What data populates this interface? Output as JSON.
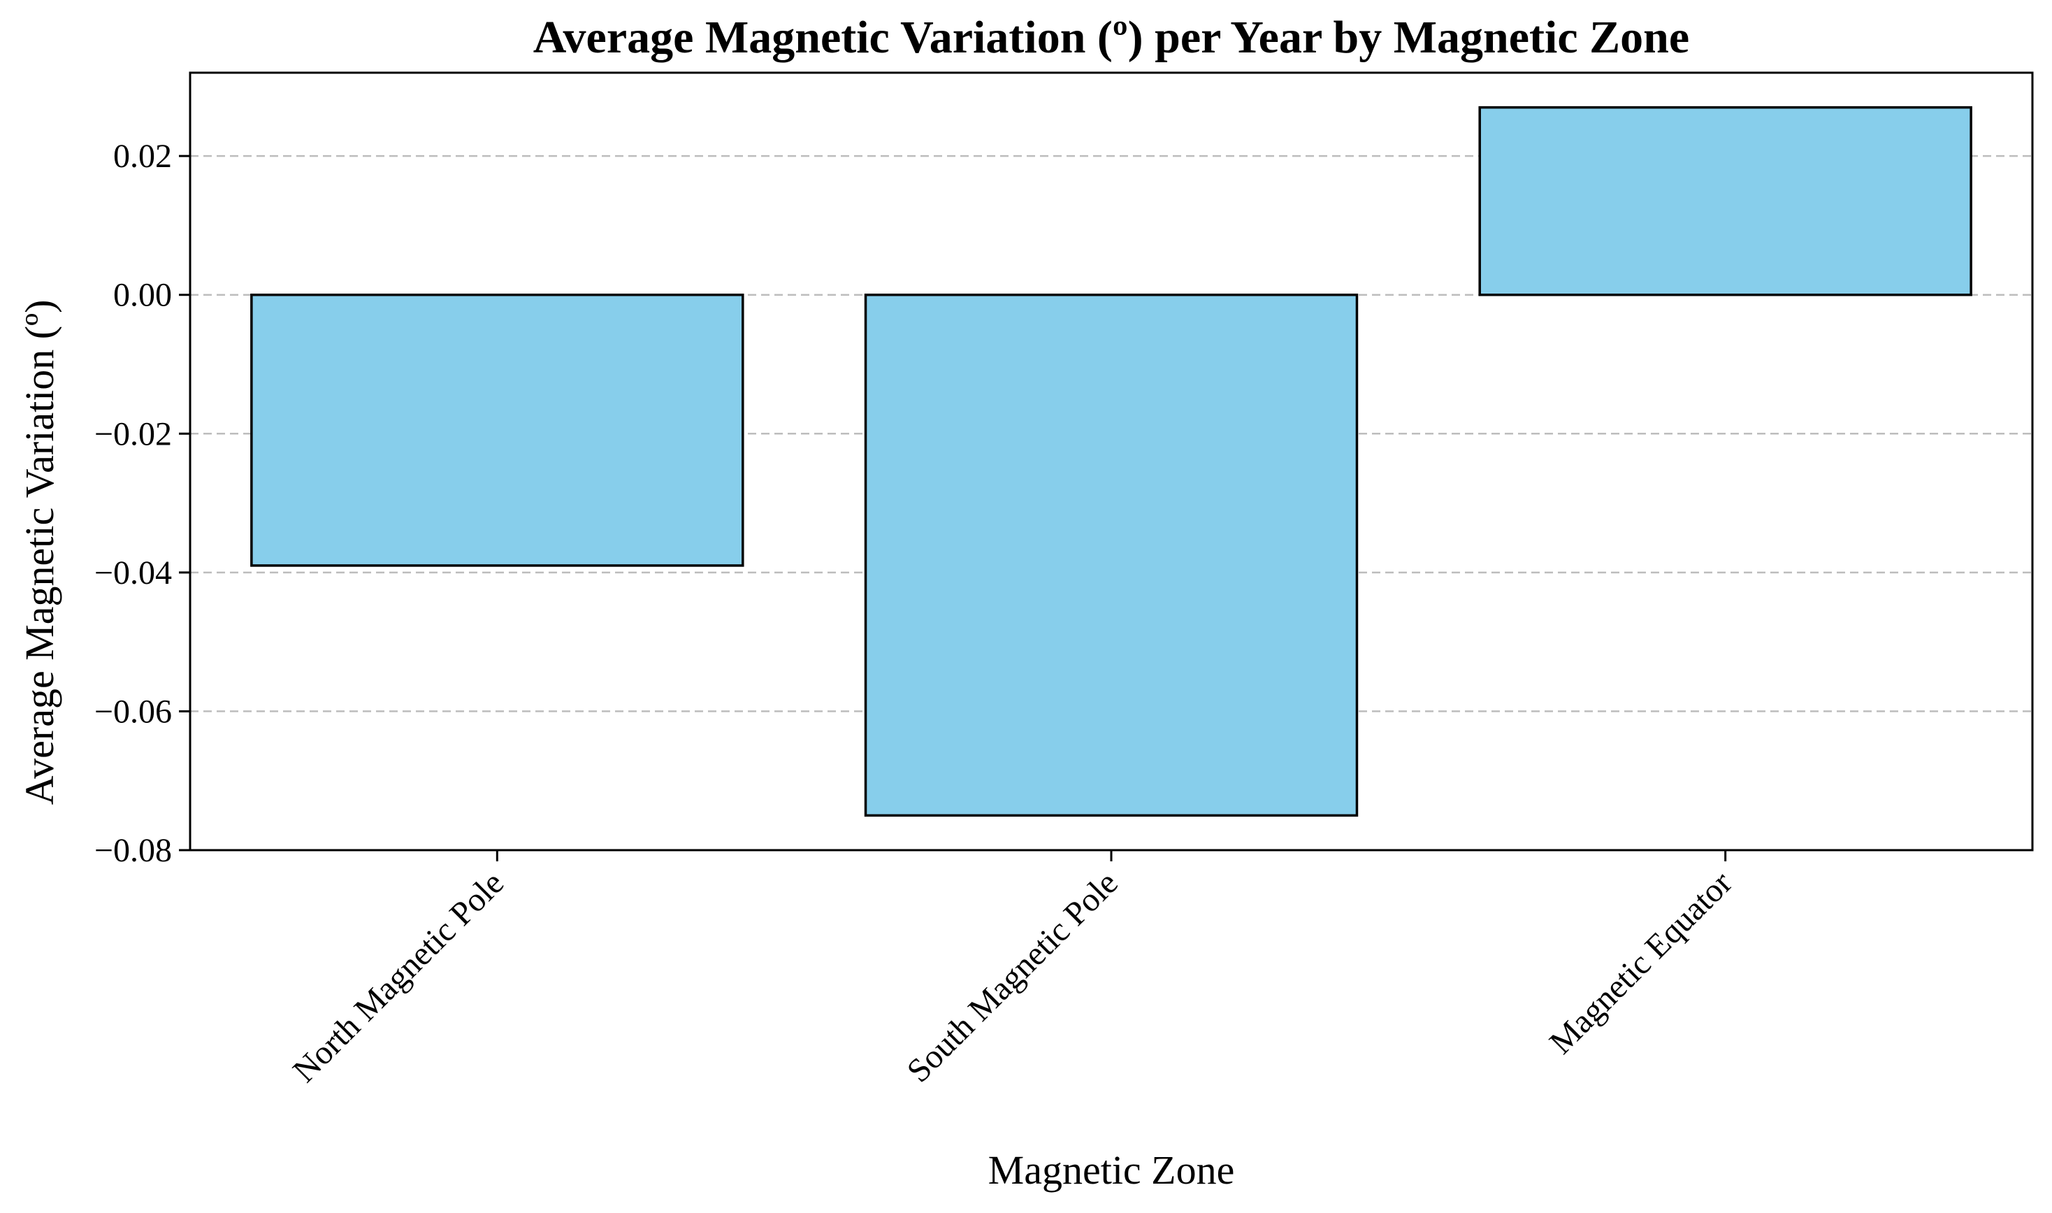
{
  "chart_data": {
    "type": "bar",
    "title": "Average Magnetic Variation (º) per Year by Magnetic Zone",
    "xlabel": "Magnetic Zone",
    "ylabel": "Average Magnetic Variation (º)",
    "categories": [
      "North Magnetic Pole",
      "South Magnetic Pole",
      "Magnetic Equator"
    ],
    "values": [
      -0.039,
      -0.075,
      0.027
    ],
    "ylim": [
      -0.08,
      0.032
    ],
    "yticks": [
      -0.08,
      -0.06,
      -0.04,
      -0.02,
      0.0,
      0.02
    ],
    "ytick_labels": [
      "−0.08",
      "−0.06",
      "−0.04",
      "−0.02",
      "0.00",
      "0.02"
    ],
    "grid": "y dashed",
    "legend": "none",
    "bar_color": "#87CEEB",
    "edge_color": "#000000",
    "grid_color": "#bdbdbd"
  }
}
